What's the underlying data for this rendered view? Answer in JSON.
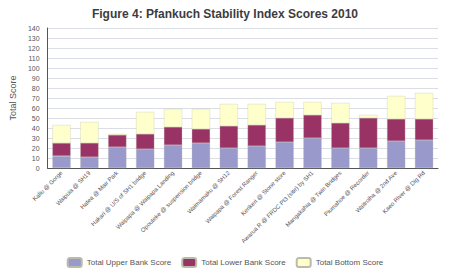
{
  "chart_data": {
    "type": "bar",
    "title": "Figure 4: Pfankuch Stability Index Scores 2010",
    "ylabel": "Total Score",
    "categories": [
      "Kaliu @ Gorge",
      "Waipuia @ SH19",
      "Hatea @ Mair Park",
      "Hakari @ U/S of SH1 bridge",
      "Waipapa @ Waipapa Landing",
      "Opouteke @ suspension bridge",
      "Waimamaku @ SH12",
      "Waipapa @ Forest Ranger",
      "Kerikeri @ Stone store",
      "Awarua R @ FRDC Pt3 (site) by SH1",
      "Mangakahia @ Twin Bridges",
      "Piumahoe @ Recorder",
      "Waitroiha @ 2nd Ave",
      "Kaeo River @ Dig Rd"
    ],
    "series": [
      {
        "name": "Total Upper Bank Score",
        "color": "#9999CC",
        "values": [
          12,
          11,
          21,
          19,
          23,
          25,
          20,
          22,
          26,
          30,
          20,
          20,
          27,
          28
        ]
      },
      {
        "name": "Total Lower Bank Score",
        "color": "#993366",
        "values": [
          13,
          14,
          12,
          15,
          18,
          14,
          22,
          21,
          24,
          23,
          25,
          30,
          22,
          21
        ]
      },
      {
        "name": "Total Bottom Score",
        "color": "#FFFFCC",
        "values": [
          18,
          21,
          1,
          22,
          18,
          20,
          22,
          21,
          16,
          13,
          20,
          3,
          23,
          26
        ]
      }
    ],
    "ylim": [
      0,
      140
    ],
    "yticks": [
      0,
      10,
      20,
      30,
      40,
      50,
      60,
      70,
      80,
      90,
      100,
      110,
      120,
      130,
      140
    ],
    "grid": true,
    "legend": "bottom",
    "stacked": true
  }
}
